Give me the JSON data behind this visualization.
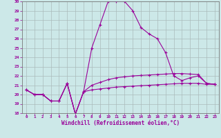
{
  "xlabel": "Windchill (Refroidissement éolien,°C)",
  "hours": [
    0,
    1,
    2,
    3,
    4,
    5,
    6,
    7,
    8,
    9,
    10,
    11,
    12,
    13,
    14,
    15,
    16,
    17,
    18,
    19,
    20,
    21,
    22,
    23
  ],
  "line_temp": [
    20.5,
    20.0,
    20.0,
    19.3,
    19.3,
    21.2,
    17.9,
    20.3,
    20.5,
    20.6,
    20.7,
    20.8,
    20.85,
    20.9,
    20.95,
    21.0,
    21.05,
    21.1,
    21.15,
    21.2,
    21.2,
    21.2,
    21.1,
    21.1
  ],
  "line_windchill": [
    20.5,
    20.0,
    20.0,
    19.3,
    19.3,
    21.2,
    17.9,
    20.3,
    21.0,
    21.3,
    21.6,
    21.8,
    21.9,
    22.0,
    22.05,
    22.1,
    22.15,
    22.2,
    22.25,
    22.25,
    22.2,
    22.15,
    21.2,
    21.1
  ],
  "line_max": [
    20.5,
    20.0,
    20.0,
    19.3,
    19.3,
    21.2,
    17.9,
    20.3,
    25.0,
    27.5,
    30.0,
    30.0,
    30.0,
    29.0,
    27.2,
    26.5,
    26.0,
    24.5,
    22.0,
    21.5,
    21.8,
    22.0,
    21.2,
    21.1
  ],
  "bg_color": "#cce8e8",
  "line_color": "#990099",
  "grid_color": "#aabbbb",
  "ylim": [
    18,
    30
  ],
  "yticks": [
    18,
    19,
    20,
    21,
    22,
    23,
    24,
    25,
    26,
    27,
    28,
    29,
    30
  ],
  "xticks": [
    0,
    1,
    2,
    3,
    4,
    5,
    6,
    7,
    8,
    9,
    10,
    11,
    12,
    13,
    14,
    15,
    16,
    17,
    18,
    19,
    20,
    21,
    22,
    23
  ]
}
